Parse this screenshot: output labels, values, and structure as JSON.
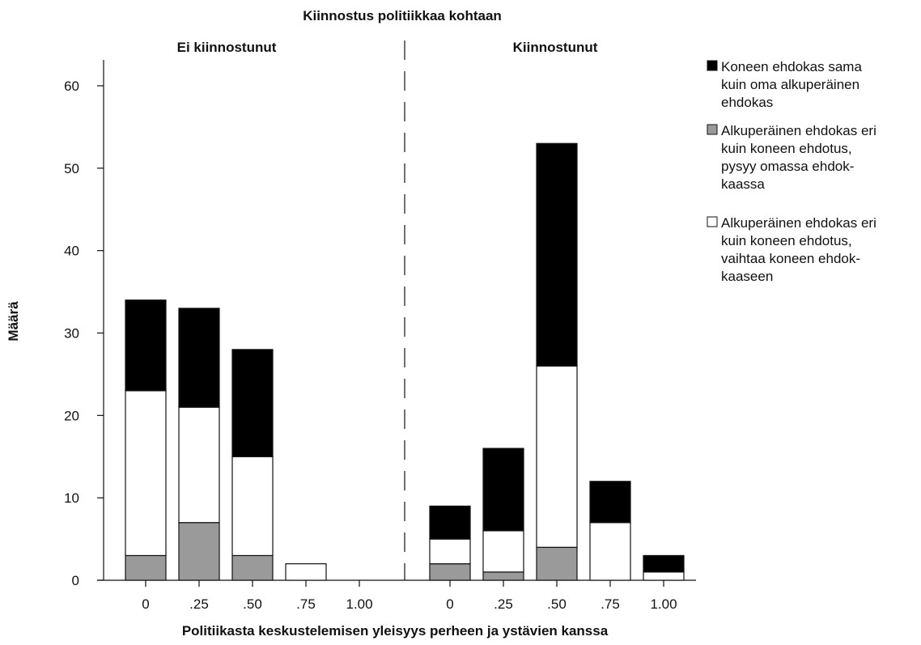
{
  "chart_data": {
    "type": "bar",
    "stacked": true,
    "title": "Kiinnostus politiikkaa kohtaan",
    "xlabel": "Politiikasta keskustelemisen yleisyys perheen ja ystävien kanssa",
    "ylabel": "Määrä",
    "ylim": [
      0,
      60
    ],
    "yticks": [
      "0",
      "10",
      "20",
      "30",
      "40",
      "50",
      "60"
    ],
    "grid": false,
    "legend_position": "right",
    "panels": [
      {
        "label": "Ei kiinnostunut",
        "categories": [
          "0",
          ".25",
          ".50",
          ".75",
          "1.00"
        ],
        "series": [
          {
            "name": "Alkuperäinen ehdokas eri kuin koneen ehdotus, pysyy omassa ehdokkaassa",
            "color": "#9a9a9a",
            "values": [
              3,
              7,
              3,
              0,
              0
            ]
          },
          {
            "name": "Alkuperäinen ehdokas eri kuin koneen ehdotus, vaihtaa koneen ehdokkaaseen",
            "color": "#ffffff",
            "values": [
              20,
              14,
              12,
              2,
              0
            ]
          },
          {
            "name": "Koneen ehdokas sama kuin oma alkuperäinen ehdokas",
            "color": "#000000",
            "values": [
              11,
              12,
              13,
              0,
              0
            ]
          }
        ]
      },
      {
        "label": "Kiinnostunut",
        "categories": [
          "0",
          ".25",
          ".50",
          ".75",
          "1.00"
        ],
        "series": [
          {
            "name": "Alkuperäinen ehdokas eri kuin koneen ehdotus, pysyy omassa ehdokkaassa",
            "color": "#9a9a9a",
            "values": [
              2,
              1,
              4,
              0,
              0
            ]
          },
          {
            "name": "Alkuperäinen ehdokas eri kuin koneen ehdotus, vaihtaa koneen ehdokkaaseen",
            "color": "#ffffff",
            "values": [
              3,
              5,
              22,
              7,
              1
            ]
          },
          {
            "name": "Koneen ehdokas sama kuin oma alkuperäinen ehdokas",
            "color": "#000000",
            "values": [
              4,
              10,
              27,
              5,
              2
            ]
          }
        ]
      }
    ],
    "legend": [
      {
        "color": "#000000",
        "lines": [
          "Koneen ehdokas sama",
          "kuin oma alkuperäinen",
          "ehdokas"
        ]
      },
      {
        "color": "#9a9a9a",
        "lines": [
          "Alkuperäinen ehdokas eri",
          "kuin koneen ehdotus,",
          "pysyy omassa ehdok-",
          "kaassa"
        ]
      },
      {
        "color": "#ffffff",
        "lines": [
          "Alkuperäinen ehdokas eri",
          "kuin koneen ehdotus,",
          "vaihtaa koneen ehdok-",
          "kaaseen"
        ]
      }
    ]
  }
}
